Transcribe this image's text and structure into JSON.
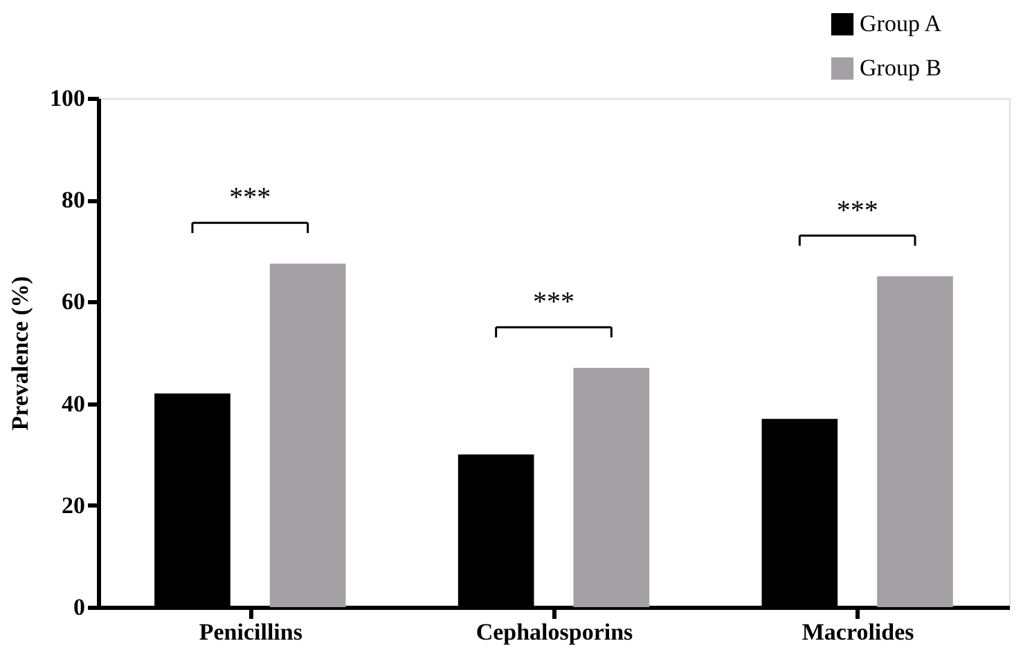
{
  "chart_data": {
    "type": "bar",
    "ylabel": "Prevalence (%)",
    "categories": [
      "Penicillins",
      "Cephalosporins",
      "Macrolides"
    ],
    "series": [
      {
        "name": "Group A",
        "color": "#000000",
        "values": [
          42,
          30,
          37
        ]
      },
      {
        "name": "Group B",
        "color": "#a5a0a5",
        "values": [
          67.5,
          47,
          65
        ]
      }
    ],
    "ylim": [
      0,
      100
    ],
    "yticks": [
      0,
      20,
      40,
      60,
      80,
      100
    ],
    "grid": false,
    "legend": "top right",
    "annotations": [
      "***",
      "***",
      "***"
    ]
  }
}
